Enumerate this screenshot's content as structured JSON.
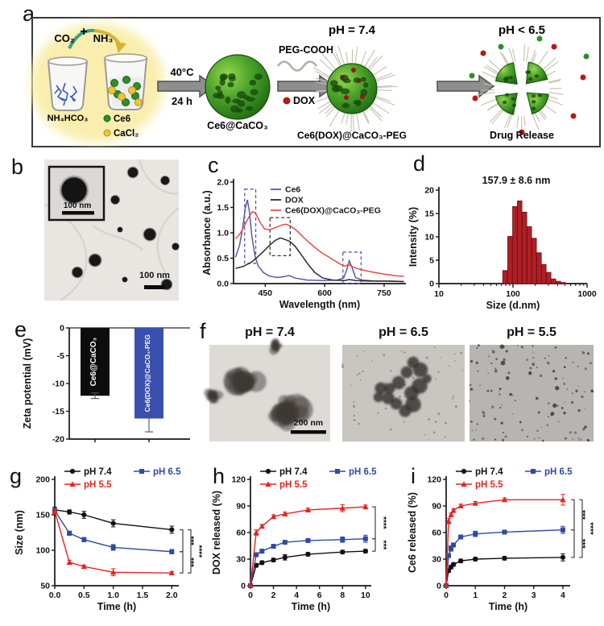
{
  "panels": {
    "a": "a",
    "b": "b",
    "c": "c",
    "d": "d",
    "e": "e",
    "f": "f",
    "g": "g",
    "h": "h",
    "i": "i"
  },
  "panel_a": {
    "co2": "CO₂",
    "plus": "+",
    "nh3": "NH₃",
    "beaker_label": "NH₄HCO₃",
    "ce6_label": "Ce6",
    "cacl2_label": "CaCl₂",
    "cond_top": "40°C",
    "cond_bottom": "24 h",
    "product1": "Ce6@CaCO₃",
    "peg": "PEG-COOH",
    "dox": "DOX",
    "ph_neutral": "pH = 7.4",
    "product2": "Ce6(DOX)@CaCO₃-PEG",
    "ph_acidic": "pH < 6.5",
    "release": "Drug Release"
  },
  "panel_b": {
    "scale_inset": "100 nm",
    "scale_main": "100 nm"
  },
  "panel_f": {
    "labels": [
      "pH = 7.4",
      "pH = 6.5",
      "pH = 5.5"
    ],
    "scale": "200 nm"
  },
  "chart_data": [
    {
      "panel": "c",
      "type": "line",
      "xlabel": "Wavelength (nm)",
      "ylabel": "Absorbance (a.u.)",
      "xlim": [
        370,
        805
      ],
      "ylim": [
        0,
        2
      ],
      "xticks": [
        450,
        600,
        750
      ],
      "yticks": [
        0,
        0.5,
        1,
        1.5,
        2
      ],
      "ytick_labels": [
        "0.0",
        "0.5",
        "1.0",
        "1.5",
        "2.0"
      ],
      "legend_position": "top-inside",
      "series": [
        {
          "name": "Ce6",
          "color": "#565aa6",
          "x": [
            375,
            385,
            393,
            400,
            405,
            410,
            416,
            424,
            432,
            445,
            460,
            480,
            500,
            510,
            525,
            555,
            600,
            632,
            648,
            656,
            662,
            669,
            678,
            695,
            730,
            770,
            800
          ],
          "y": [
            0.52,
            0.75,
            1.1,
            1.5,
            1.65,
            1.42,
            0.95,
            0.55,
            0.35,
            0.22,
            0.15,
            0.12,
            0.14,
            0.16,
            0.11,
            0.07,
            0.06,
            0.07,
            0.11,
            0.28,
            0.45,
            0.32,
            0.12,
            0.07,
            0.05,
            0.05,
            0.04
          ]
        },
        {
          "name": "DOX",
          "color": "#2b2b2b",
          "x": [
            375,
            395,
            415,
            430,
            445,
            460,
            475,
            488,
            500,
            512,
            525,
            540,
            558,
            575,
            595,
            620,
            650,
            662,
            680,
            710,
            750,
            800
          ],
          "y": [
            0.3,
            0.34,
            0.42,
            0.52,
            0.63,
            0.75,
            0.85,
            0.9,
            0.87,
            0.83,
            0.74,
            0.58,
            0.38,
            0.22,
            0.11,
            0.07,
            0.06,
            0.08,
            0.06,
            0.05,
            0.05,
            0.04
          ]
        },
        {
          "name": "Ce6(DOX)@CaCO₃-PEG",
          "color": "#e05045",
          "x": [
            375,
            388,
            400,
            410,
            418,
            426,
            436,
            448,
            460,
            475,
            490,
            502,
            515,
            530,
            548,
            568,
            590,
            615,
            640,
            652,
            660,
            668,
            680,
            700,
            725,
            755,
            785,
            800
          ],
          "y": [
            0.88,
            1.0,
            1.18,
            1.33,
            1.42,
            1.38,
            1.22,
            1.08,
            1.06,
            1.1,
            1.15,
            1.17,
            1.13,
            1.04,
            0.9,
            0.76,
            0.62,
            0.5,
            0.38,
            0.34,
            0.38,
            0.34,
            0.3,
            0.26,
            0.22,
            0.18,
            0.15,
            0.14
          ]
        }
      ],
      "boxes": [
        {
          "x": [
            398,
            426
          ],
          "y": [
            0.4,
            1.86
          ],
          "c": "#565aa6"
        },
        {
          "x": [
            462,
            513
          ],
          "y": [
            0.55,
            1.3
          ],
          "c": "#333333"
        },
        {
          "x": [
            646,
            692
          ],
          "y": [
            0.0,
            0.62
          ],
          "c": "#565aa6"
        }
      ]
    },
    {
      "panel": "d",
      "type": "bar",
      "title": "157.9 ± 8.6 nm",
      "xlabel": "Size (d.nm)",
      "ylabel": "Intensity (%)",
      "x_scale": "log",
      "xlim": [
        10,
        1000
      ],
      "ylim": [
        0,
        20
      ],
      "xticks": [
        10,
        100,
        1000
      ],
      "yticks": [
        0,
        5,
        10,
        15,
        20
      ],
      "bar_color": "#b01f26",
      "sizes": [
        78,
        91,
        106,
        123,
        143,
        166,
        193,
        225,
        261,
        303,
        352,
        409,
        476
      ],
      "values": [
        2.8,
        10.1,
        16.5,
        17.7,
        15.3,
        12.2,
        9.7,
        6.6,
        4.1,
        2.4,
        1.0,
        0.5,
        0.25
      ]
    },
    {
      "panel": "e",
      "type": "bar",
      "ylabel": "Zeta potential (mV)",
      "ylim": [
        -20,
        0
      ],
      "yticks": [
        0,
        -5,
        -10,
        -15,
        -20
      ],
      "bars": [
        {
          "label": "Ce6@CaCO₃",
          "value": -12.2,
          "err": 0.5,
          "color": "#0d0d0d"
        },
        {
          "label": "Ce6(DOX)@CaCO₃-PEG",
          "value": -16.3,
          "err": 2.4,
          "color": "#3a4fae"
        }
      ]
    },
    {
      "panel": "g",
      "type": "line",
      "xlabel": "Time (h)",
      "ylabel": "Size (nm)",
      "xlim": [
        0,
        2.12
      ],
      "ylim": [
        50,
        200
      ],
      "xticks": [
        0,
        0.5,
        1,
        1.5,
        2
      ],
      "xtick_labels": [
        "0.0",
        "0.5",
        "1.0",
        "1.5",
        "2.0"
      ],
      "yticks": [
        50,
        100,
        150,
        200
      ],
      "series": [
        {
          "name": "pH 7.4",
          "color": "#111111",
          "marker": "circle",
          "x": [
            0,
            0.25,
            0.5,
            1,
            2
          ],
          "y": [
            157,
            154,
            150,
            138,
            129
          ],
          "err": [
            4,
            3,
            5,
            5,
            5
          ]
        },
        {
          "name": "pH 6.5",
          "color": "#2e4aa5",
          "marker": "square",
          "x": [
            0,
            0.25,
            0.5,
            1,
            2
          ],
          "y": [
            156,
            124,
            115,
            104,
            98
          ],
          "err": [
            3,
            3,
            3,
            4,
            3
          ]
        },
        {
          "name": "pH 5.5",
          "color": "#e52420",
          "marker": "triangle",
          "x": [
            0,
            0.25,
            0.5,
            1,
            2
          ],
          "y": [
            155,
            83,
            77,
            69,
            68
          ],
          "err": [
            4,
            3,
            2,
            5,
            2
          ]
        }
      ],
      "brackets": [
        {
          "label": "***",
          "series": [
            0,
            1
          ],
          "level": 0
        },
        {
          "label": "***",
          "series": [
            1,
            2
          ],
          "level": 0
        },
        {
          "label": "****",
          "series": [
            0,
            2
          ],
          "level": 1
        }
      ]
    },
    {
      "panel": "h",
      "type": "line",
      "xlabel": "Time (h)",
      "ylabel": "DOX released (%)",
      "xlim": [
        0,
        10.5
      ],
      "ylim": [
        0,
        120
      ],
      "xticks": [
        0,
        2,
        4,
        6,
        8,
        10
      ],
      "yticks": [
        0,
        30,
        60,
        90,
        120
      ],
      "series": [
        {
          "name": "pH 7.4",
          "color": "#111111",
          "marker": "circle",
          "x": [
            0,
            0.5,
            1,
            2,
            3,
            5,
            8,
            10
          ],
          "y": [
            0,
            23,
            26,
            29,
            32,
            35.5,
            38,
            39
          ],
          "err": [
            0,
            2,
            2,
            2,
            3,
            2,
            2,
            2
          ]
        },
        {
          "name": "pH 6.5",
          "color": "#2e4aa5",
          "marker": "square",
          "x": [
            0,
            0.5,
            1,
            2,
            3,
            5,
            8,
            10
          ],
          "y": [
            0,
            35,
            39,
            44.5,
            49,
            51,
            52,
            53
          ],
          "err": [
            0,
            2,
            2,
            2,
            2,
            2,
            3,
            4
          ]
        },
        {
          "name": "pH 5.5",
          "color": "#e52420",
          "marker": "triangle",
          "x": [
            0,
            0.5,
            1,
            2,
            3,
            5,
            8,
            10
          ],
          "y": [
            0,
            60,
            67,
            78,
            81,
            85.5,
            87.5,
            89
          ],
          "err": [
            0,
            3,
            2,
            2,
            2,
            2,
            4,
            2
          ]
        }
      ],
      "brackets": [
        {
          "label": "****",
          "series": [
            2,
            1
          ],
          "level": 0
        },
        {
          "label": "***",
          "series": [
            1,
            0
          ],
          "level": 0
        }
      ]
    },
    {
      "panel": "i",
      "type": "line",
      "xlabel": "Time (h)",
      "ylabel": "Ce6 released (%)",
      "xlim": [
        0,
        4.25
      ],
      "ylim": [
        0,
        120
      ],
      "xticks": [
        0,
        1,
        2,
        3,
        4
      ],
      "yticks": [
        0,
        30,
        60,
        90,
        120
      ],
      "series": [
        {
          "name": "pH 7.4",
          "color": "#111111",
          "marker": "circle",
          "x": [
            0,
            0.083,
            0.167,
            0.25,
            0.5,
            1,
            2,
            4
          ],
          "y": [
            0,
            17,
            21,
            24,
            28,
            30,
            31,
            32
          ],
          "err": [
            0,
            2,
            2,
            2,
            2,
            2,
            2,
            4
          ]
        },
        {
          "name": "pH 6.5",
          "color": "#2e4aa5",
          "marker": "square",
          "x": [
            0,
            0.083,
            0.167,
            0.25,
            0.5,
            1,
            2,
            4
          ],
          "y": [
            0,
            34,
            42,
            46,
            55,
            58.5,
            60.5,
            63
          ],
          "err": [
            0,
            2,
            3,
            2,
            2,
            3,
            2,
            4
          ]
        },
        {
          "name": "pH 5.5",
          "color": "#e52420",
          "marker": "triangle",
          "x": [
            0,
            0.083,
            0.167,
            0.25,
            0.5,
            1,
            2,
            4
          ],
          "y": [
            0,
            73,
            80,
            85,
            90,
            93,
            97,
            97
          ],
          "err": [
            0,
            3,
            2,
            2,
            2,
            2,
            2,
            6
          ]
        }
      ],
      "brackets": [
        {
          "label": "***",
          "series": [
            2,
            1
          ],
          "level": 0
        },
        {
          "label": "***",
          "series": [
            1,
            0
          ],
          "level": 0
        },
        {
          "label": "****",
          "series": [
            2,
            0
          ],
          "level": 1
        }
      ]
    }
  ]
}
